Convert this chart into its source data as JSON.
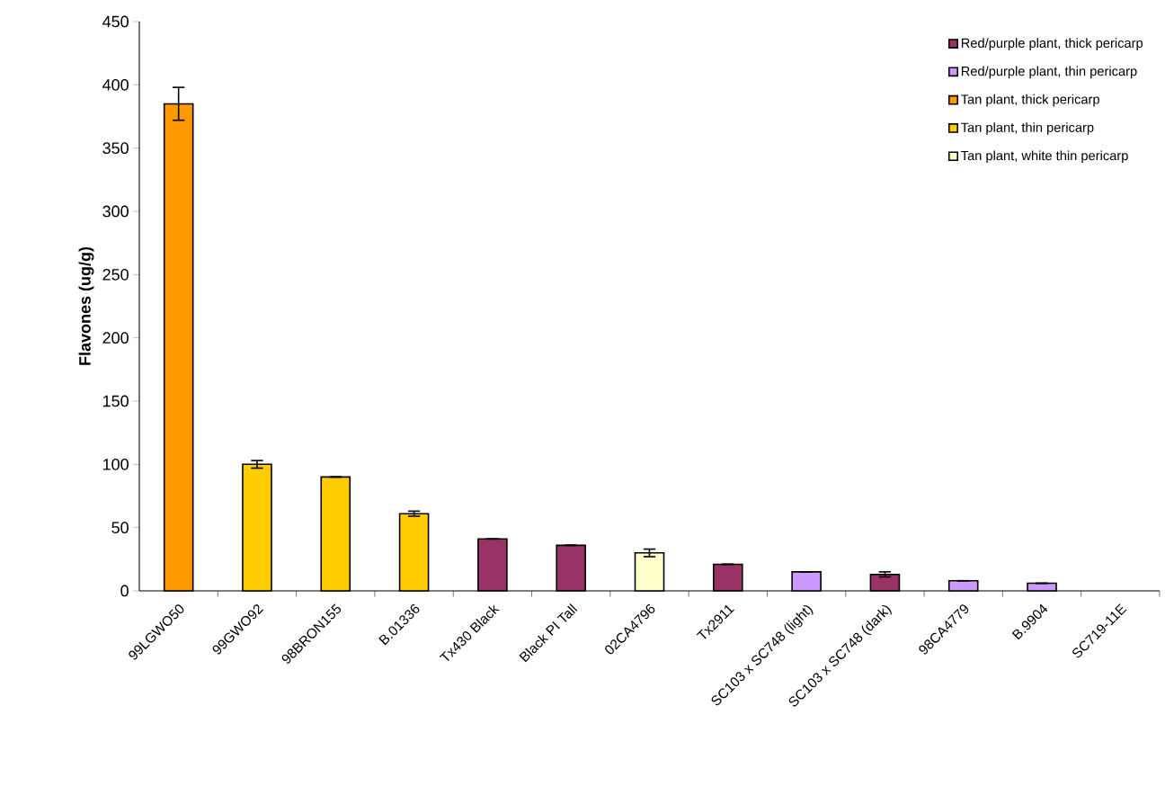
{
  "chart_data": {
    "type": "bar",
    "ylabel": "Flavones (ug/g)",
    "categories": [
      "99LGWO50",
      "99GWO92",
      "98BRON155",
      "B.01336",
      "Tx430 Black",
      "Black PI Tall",
      "02CA4796",
      "Tx2911",
      "SC103 x SC748 (light)",
      "SC103 x SC748 (dark)",
      "98CA4779",
      "B.9904",
      "SC719-11E"
    ],
    "series": [
      {
        "name": "Red/purple plant, thick pericarp",
        "color": "#993366",
        "values": [
          null,
          null,
          null,
          null,
          41,
          36,
          null,
          21,
          null,
          13,
          null,
          null,
          null
        ],
        "errors": [
          null,
          null,
          null,
          null,
          null,
          null,
          null,
          null,
          null,
          2,
          null,
          null,
          null
        ]
      },
      {
        "name": "Red/purple plant, thin pericarp",
        "color": "#cc99ff",
        "values": [
          null,
          null,
          null,
          null,
          null,
          null,
          null,
          null,
          15,
          null,
          8,
          6,
          null
        ]
      },
      {
        "name": "Tan plant, thick pericarp",
        "color": "#ff9900",
        "values": [
          385,
          null,
          null,
          null,
          null,
          null,
          null,
          null,
          null,
          null,
          null,
          null,
          null
        ],
        "errors": [
          13,
          null,
          null,
          null,
          null,
          null,
          null,
          null,
          null,
          null,
          null,
          null,
          null
        ]
      },
      {
        "name": "Tan plant, thin pericarp",
        "color": "#ffcc00",
        "values": [
          null,
          100,
          90,
          61,
          null,
          null,
          null,
          null,
          null,
          null,
          null,
          null,
          null
        ],
        "errors": [
          null,
          3,
          null,
          2,
          null,
          null,
          null,
          null,
          null,
          null,
          null,
          null,
          null
        ]
      },
      {
        "name": "Tan plant, white thin pericarp",
        "color": "#ffffcc",
        "values": [
          null,
          null,
          null,
          null,
          null,
          null,
          30,
          null,
          null,
          null,
          null,
          null,
          null
        ],
        "errors": [
          null,
          null,
          null,
          null,
          null,
          null,
          3,
          null,
          null,
          null,
          null,
          null,
          null
        ]
      }
    ],
    "ylim": [
      0,
      450
    ],
    "yticks": [
      0,
      50,
      100,
      150,
      200,
      250,
      300,
      350,
      400,
      450
    ],
    "legend": "top right",
    "grid": false
  }
}
